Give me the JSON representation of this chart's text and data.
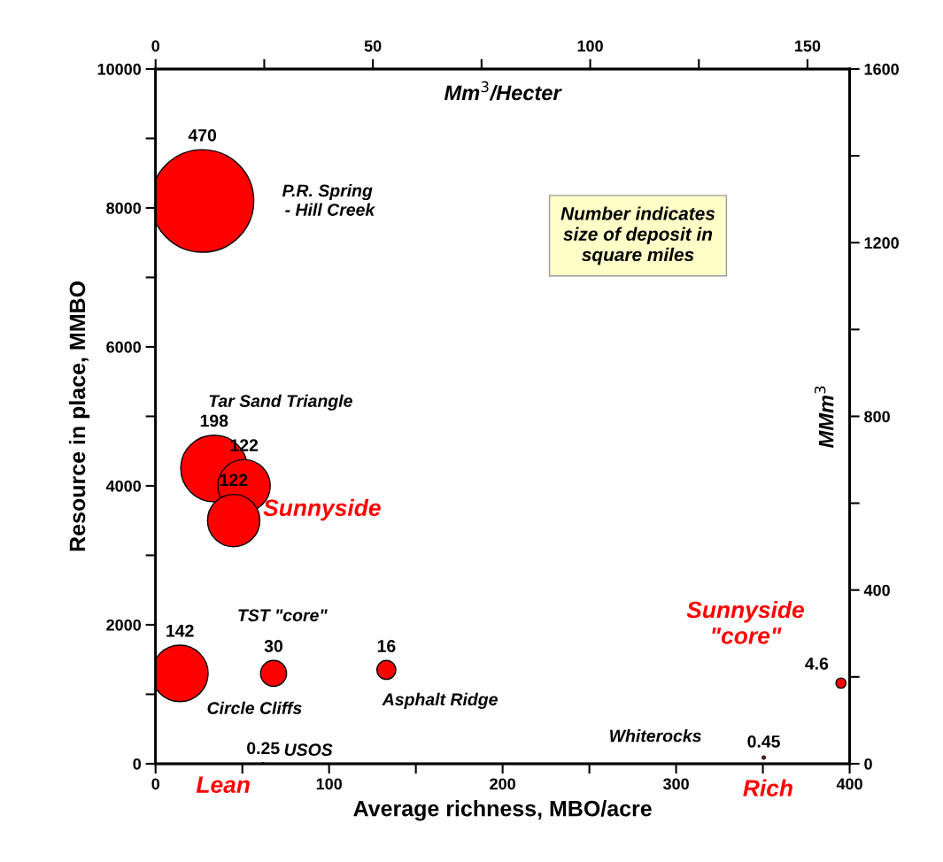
{
  "chart_data": {
    "type": "bubble",
    "xlabel": "Average richness, MBO/acre",
    "ylabel": "Resource in place, MMBO",
    "x2label": "Mm$^{3}$/Hecter",
    "y2label": "MMm$^{3}$",
    "x": [
      27,
      33.7,
      51,
      45,
      14,
      68,
      133,
      62,
      350.5,
      395
    ],
    "series": [
      {
        "color": "#ff0000",
        "values": [
          8100,
          4250,
          4000,
          3500,
          1300,
          1300,
          1350,
          0,
          90,
          1160
        ],
        "sizes": [
          470,
          198,
          122,
          122,
          142,
          30,
          16,
          0.25,
          0.45,
          4.6
        ],
        "value_labels": [
          "470",
          "198",
          "122",
          "122",
          "142",
          "30",
          "16",
          "0.25",
          "0.45",
          "4.6"
        ]
      }
    ],
    "xlim": [
      0,
      400
    ],
    "ylim": [
      0,
      10000
    ],
    "xticks": [
      0,
      {
        "value": 50,
        "label": null
      },
      100,
      {
        "value": 150,
        "label": null
      },
      200,
      {
        "value": 250,
        "label": null
      },
      300,
      {
        "value": 350,
        "label": null
      },
      400
    ],
    "yticks": [
      0,
      {
        "value": 1000,
        "label": null
      },
      2000,
      {
        "value": 3000,
        "label": null
      },
      4000,
      {
        "value": 5000,
        "label": null
      },
      6000,
      {
        "value": 7000,
        "label": null
      },
      8000,
      {
        "value": 9000,
        "label": null
      },
      10000
    ],
    "x2lim": [
      0,
      159.7
    ],
    "x2ticks": [
      0,
      {
        "value": 25,
        "label": null
      },
      50,
      {
        "value": 75,
        "label": null
      },
      100,
      {
        "value": 125,
        "label": null
      },
      150
    ],
    "y2lim": [
      0,
      1600
    ],
    "y2ticks": [
      0,
      {
        "value": 200,
        "label": null
      },
      400,
      {
        "value": 600,
        "label": null
      },
      800,
      {
        "value": 1000,
        "label": null
      },
      1200,
      {
        "value": 1400,
        "label": null
      },
      1600
    ],
    "grid": false,
    "annotations": [
      "Number indicates\nsize of deposit in\nsquare miles",
      "P.R. Spring\n - Hill Creek",
      "Tar Sand Triangle",
      "Sunnyside",
      "TST \"core\"",
      "Circle Cliffs",
      "Asphalt Ridge",
      "USOS",
      "Whiterocks",
      "Sunnyside\n\"core\"",
      "Lean",
      "Rich"
    ]
  }
}
